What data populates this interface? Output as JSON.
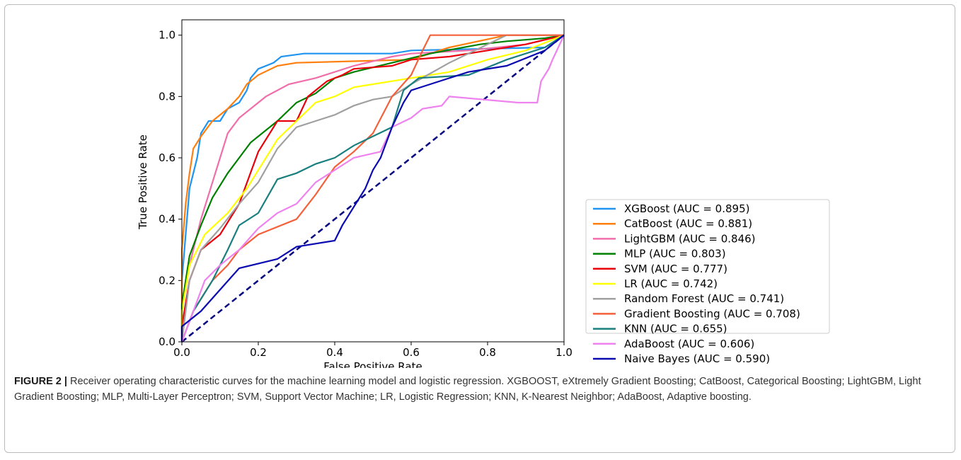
{
  "chart_data": {
    "type": "line",
    "xlabel": "False Positive Rate",
    "ylabel": "True Positive Rate",
    "xlim": [
      0,
      1
    ],
    "ylim": [
      0,
      1.05
    ],
    "xticks": [
      {
        "value": 0,
        "label": "0.0"
      },
      0.2,
      0.4,
      0.6,
      0.8,
      {
        "value": 1,
        "label": "1.0"
      }
    ],
    "yticks": [
      {
        "value": 0,
        "label": "0.0"
      },
      0.2,
      0.4,
      0.6,
      0.8,
      {
        "value": 1,
        "label": "1.0"
      }
    ],
    "legend": "right-outside",
    "series": [
      {
        "name": "XGBoost (AUC = 0.895)",
        "color": "#1f94f0",
        "x": [
          0,
          0,
          0.01,
          0.02,
          0.04,
          0.05,
          0.07,
          0.1,
          0.12,
          0.15,
          0.17,
          0.18,
          0.2,
          0.24,
          0.26,
          0.32,
          0.55,
          0.6,
          0.95,
          1
        ],
        "values": [
          0,
          0.2,
          0.35,
          0.5,
          0.6,
          0.68,
          0.72,
          0.72,
          0.76,
          0.78,
          0.82,
          0.86,
          0.89,
          0.91,
          0.93,
          0.94,
          0.94,
          0.95,
          0.96,
          1
        ]
      },
      {
        "name": "CatBoost (AUC = 0.881)",
        "color": "#ff7f0e",
        "x": [
          0,
          0,
          0.01,
          0.02,
          0.03,
          0.05,
          0.08,
          0.12,
          0.15,
          0.17,
          0.2,
          0.25,
          0.3,
          0.6,
          0.7,
          0.85,
          1
        ],
        "values": [
          0,
          0.3,
          0.45,
          0.55,
          0.63,
          0.67,
          0.72,
          0.76,
          0.8,
          0.84,
          0.87,
          0.9,
          0.91,
          0.92,
          0.96,
          1,
          1
        ]
      },
      {
        "name": "LightGBM (AUC = 0.846)",
        "color": "#f06eaa",
        "x": [
          0,
          0,
          0.02,
          0.05,
          0.08,
          0.1,
          0.12,
          0.15,
          0.2,
          0.22,
          0.25,
          0.28,
          0.35,
          0.4,
          0.45,
          0.55,
          0.6,
          0.75,
          0.9,
          1
        ],
        "values": [
          0,
          0.1,
          0.25,
          0.4,
          0.52,
          0.6,
          0.68,
          0.73,
          0.78,
          0.8,
          0.82,
          0.84,
          0.86,
          0.88,
          0.9,
          0.93,
          0.94,
          0.95,
          0.97,
          1
        ]
      },
      {
        "name": "MLP (AUC = 0.803)",
        "color": "#008000",
        "x": [
          0,
          0,
          0.02,
          0.05,
          0.08,
          0.12,
          0.15,
          0.18,
          0.22,
          0.25,
          0.3,
          0.35,
          0.4,
          0.45,
          0.55,
          0.65,
          0.78,
          0.85,
          0.95,
          1
        ],
        "values": [
          0,
          0.12,
          0.28,
          0.38,
          0.47,
          0.55,
          0.6,
          0.65,
          0.69,
          0.72,
          0.78,
          0.81,
          0.86,
          0.88,
          0.91,
          0.94,
          0.97,
          0.98,
          0.99,
          1
        ]
      },
      {
        "name": "SVM (AUC = 0.777)",
        "color": "#e8000b",
        "x": [
          0,
          0,
          0.02,
          0.05,
          0.1,
          0.15,
          0.2,
          0.25,
          0.3,
          0.33,
          0.38,
          0.42,
          0.45,
          0.55,
          0.6,
          0.7,
          0.8,
          0.9,
          1
        ],
        "values": [
          0,
          0.05,
          0.2,
          0.3,
          0.35,
          0.45,
          0.62,
          0.72,
          0.72,
          0.8,
          0.85,
          0.87,
          0.89,
          0.9,
          0.92,
          0.93,
          0.95,
          0.97,
          1
        ]
      },
      {
        "name": "LR (AUC = 0.742)",
        "color": "#ffff00",
        "x": [
          0,
          0,
          0.02,
          0.06,
          0.12,
          0.17,
          0.2,
          0.25,
          0.3,
          0.35,
          0.4,
          0.45,
          0.5,
          0.6,
          0.7,
          0.8,
          0.9,
          1
        ],
        "values": [
          0,
          0.1,
          0.25,
          0.35,
          0.42,
          0.5,
          0.56,
          0.66,
          0.72,
          0.78,
          0.8,
          0.83,
          0.84,
          0.86,
          0.88,
          0.92,
          0.95,
          1
        ]
      },
      {
        "name": "Random Forest (AUC = 0.741)",
        "color": "#a0a0a0",
        "x": [
          0,
          0.02,
          0.05,
          0.1,
          0.15,
          0.2,
          0.25,
          0.3,
          0.35,
          0.4,
          0.45,
          0.5,
          0.55,
          0.6,
          0.7,
          0.8,
          0.85,
          1
        ],
        "values": [
          0,
          0.2,
          0.3,
          0.37,
          0.45,
          0.52,
          0.63,
          0.7,
          0.72,
          0.74,
          0.77,
          0.79,
          0.8,
          0.84,
          0.91,
          0.97,
          1,
          1
        ]
      },
      {
        "name": "Gradient Boosting (AUC = 0.708)",
        "color": "#f4603a",
        "x": [
          0,
          0.03,
          0.08,
          0.12,
          0.15,
          0.2,
          0.3,
          0.35,
          0.4,
          0.45,
          0.5,
          0.55,
          0.6,
          0.63,
          0.65,
          1
        ],
        "values": [
          0,
          0.1,
          0.2,
          0.25,
          0.3,
          0.35,
          0.4,
          0.48,
          0.57,
          0.62,
          0.68,
          0.8,
          0.87,
          0.95,
          1,
          1
        ]
      },
      {
        "name": "KNN (AUC = 0.655)",
        "color": "#1a7f7f",
        "x": [
          0,
          0.03,
          0.08,
          0.12,
          0.15,
          0.2,
          0.25,
          0.3,
          0.35,
          0.4,
          0.45,
          0.5,
          0.55,
          0.58,
          0.62,
          0.75,
          0.85,
          0.95,
          1
        ],
        "values": [
          0,
          0.1,
          0.2,
          0.3,
          0.38,
          0.42,
          0.53,
          0.55,
          0.58,
          0.6,
          0.64,
          0.67,
          0.7,
          0.82,
          0.86,
          0.87,
          0.92,
          0.96,
          1
        ]
      },
      {
        "name": "AdaBoost (AUC = 0.606)",
        "color": "#ee82ee",
        "x": [
          0,
          0.03,
          0.06,
          0.1,
          0.15,
          0.2,
          0.25,
          0.3,
          0.35,
          0.45,
          0.52,
          0.55,
          0.6,
          0.63,
          0.68,
          0.7,
          0.88,
          0.93,
          0.94,
          0.96,
          0.97,
          1
        ],
        "values": [
          0,
          0.1,
          0.2,
          0.25,
          0.3,
          0.37,
          0.42,
          0.45,
          0.52,
          0.6,
          0.62,
          0.7,
          0.73,
          0.76,
          0.77,
          0.8,
          0.78,
          0.78,
          0.85,
          0.89,
          0.92,
          1
        ]
      },
      {
        "name": "Naive Bayes (AUC = 0.590)",
        "color": "#0a0ab0",
        "x": [
          0,
          0,
          0.05,
          0.15,
          0.25,
          0.3,
          0.4,
          0.42,
          0.45,
          0.48,
          0.5,
          0.52,
          0.55,
          0.58,
          0.6,
          0.65,
          0.75,
          0.85,
          0.95,
          0.97,
          1
        ],
        "values": [
          0,
          0.05,
          0.1,
          0.24,
          0.27,
          0.31,
          0.33,
          0.38,
          0.44,
          0.5,
          0.56,
          0.6,
          0.7,
          0.78,
          0.82,
          0.84,
          0.88,
          0.9,
          0.95,
          0.97,
          1
        ]
      }
    ]
  },
  "caption": {
    "label": "FIGURE 2 |",
    "text": "Receiver operating characteristic curves for the machine learning model and logistic regression. XGBOOST, eXtremely Gradient Boosting; CatBoost, Categorical Boosting; LightGBM, Light Gradient Boosting; MLP, Multi-Layer Perceptron; SVM, Support Vector Machine; LR, Logistic Regression; KNN, K-Nearest Neighbor; AdaBoost, Adaptive boosting."
  }
}
